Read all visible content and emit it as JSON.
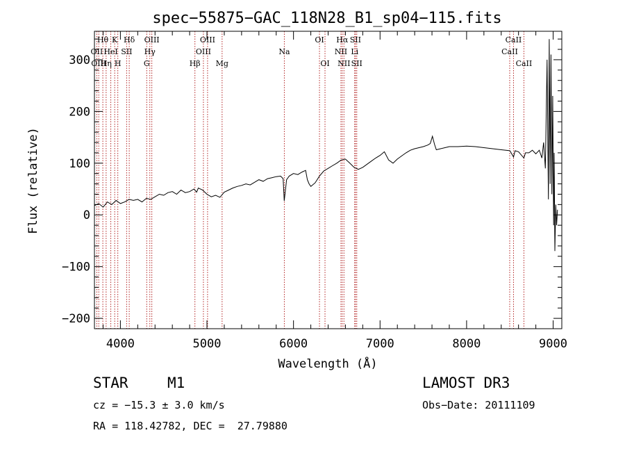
{
  "chart_data": {
    "type": "line",
    "title": "spec−55875−GAC_118N28_B1_sp04−115.fits",
    "xlabel": "Wavelength (Å)",
    "ylabel": "Flux (relative)",
    "xlim": [
      3700,
      9100
    ],
    "ylim": [
      -220,
      355
    ],
    "xticks": [
      4000,
      5000,
      6000,
      7000,
      8000,
      9000
    ],
    "yticks": [
      -200,
      -100,
      0,
      100,
      200,
      300
    ],
    "ytick_labels": [
      "−200",
      "−100",
      "0",
      "100",
      "200",
      "300"
    ],
    "series": [
      {
        "name": "flux",
        "points": [
          [
            3700,
            18
          ],
          [
            3750,
            22
          ],
          [
            3800,
            15
          ],
          [
            3850,
            25
          ],
          [
            3900,
            20
          ],
          [
            3950,
            28
          ],
          [
            4000,
            22
          ],
          [
            4050,
            25
          ],
          [
            4100,
            30
          ],
          [
            4150,
            28
          ],
          [
            4200,
            30
          ],
          [
            4250,
            25
          ],
          [
            4300,
            32
          ],
          [
            4350,
            30
          ],
          [
            4400,
            35
          ],
          [
            4450,
            40
          ],
          [
            4500,
            38
          ],
          [
            4550,
            43
          ],
          [
            4600,
            45
          ],
          [
            4650,
            40
          ],
          [
            4700,
            48
          ],
          [
            4750,
            43
          ],
          [
            4800,
            45
          ],
          [
            4850,
            50
          ],
          [
            4880,
            44
          ],
          [
            4900,
            52
          ],
          [
            4950,
            48
          ],
          [
            5000,
            40
          ],
          [
            5050,
            35
          ],
          [
            5100,
            38
          ],
          [
            5150,
            34
          ],
          [
            5200,
            44
          ],
          [
            5250,
            48
          ],
          [
            5300,
            52
          ],
          [
            5350,
            55
          ],
          [
            5400,
            57
          ],
          [
            5450,
            60
          ],
          [
            5500,
            58
          ],
          [
            5550,
            63
          ],
          [
            5600,
            68
          ],
          [
            5650,
            65
          ],
          [
            5700,
            70
          ],
          [
            5750,
            72
          ],
          [
            5800,
            74
          ],
          [
            5850,
            75
          ],
          [
            5880,
            70
          ],
          [
            5893,
            27
          ],
          [
            5905,
            45
          ],
          [
            5920,
            68
          ],
          [
            5950,
            75
          ],
          [
            6000,
            80
          ],
          [
            6050,
            78
          ],
          [
            6100,
            83
          ],
          [
            6140,
            86
          ],
          [
            6160,
            68
          ],
          [
            6180,
            60
          ],
          [
            6200,
            55
          ],
          [
            6250,
            62
          ],
          [
            6300,
            75
          ],
          [
            6350,
            85
          ],
          [
            6400,
            90
          ],
          [
            6450,
            95
          ],
          [
            6500,
            100
          ],
          [
            6550,
            106
          ],
          [
            6600,
            108
          ],
          [
            6650,
            100
          ],
          [
            6700,
            92
          ],
          [
            6750,
            88
          ],
          [
            6800,
            92
          ],
          [
            6850,
            98
          ],
          [
            6900,
            104
          ],
          [
            6950,
            110
          ],
          [
            7000,
            115
          ],
          [
            7050,
            122
          ],
          [
            7100,
            106
          ],
          [
            7150,
            100
          ],
          [
            7200,
            108
          ],
          [
            7250,
            114
          ],
          [
            7300,
            120
          ],
          [
            7350,
            125
          ],
          [
            7400,
            128
          ],
          [
            7450,
            130
          ],
          [
            7500,
            132
          ],
          [
            7550,
            135
          ],
          [
            7580,
            138
          ],
          [
            7605,
            152
          ],
          [
            7630,
            136
          ],
          [
            7650,
            126
          ],
          [
            7700,
            128
          ],
          [
            7750,
            130
          ],
          [
            7800,
            132
          ],
          [
            7900,
            132
          ],
          [
            8000,
            133
          ],
          [
            8100,
            132
          ],
          [
            8200,
            130
          ],
          [
            8300,
            128
          ],
          [
            8400,
            126
          ],
          [
            8500,
            124
          ],
          [
            8542,
            112
          ],
          [
            8560,
            124
          ],
          [
            8600,
            122
          ],
          [
            8662,
            110
          ],
          [
            8680,
            120
          ],
          [
            8720,
            120
          ],
          [
            8760,
            125
          ],
          [
            8800,
            118
          ],
          [
            8840,
            125
          ],
          [
            8870,
            110
          ],
          [
            8890,
            140
          ],
          [
            8910,
            90
          ],
          [
            8930,
            300
          ],
          [
            8945,
            30
          ],
          [
            8955,
            340
          ],
          [
            8965,
            60
          ],
          [
            8975,
            310
          ],
          [
            8985,
            40
          ],
          [
            8995,
            230
          ],
          [
            9005,
            -20
          ],
          [
            9012,
            120
          ],
          [
            9020,
            -70
          ],
          [
            9030,
            20
          ],
          [
            9040,
            -20
          ],
          [
            9050,
            10
          ]
        ]
      }
    ],
    "lines": [
      {
        "wave": 3797,
        "label": "Hθ",
        "row": 1
      },
      {
        "wave": 3727,
        "label": "OII",
        "row": 2
      },
      {
        "wave": 3750,
        "label": "OIII",
        "row": 3
      },
      {
        "wave": 3835,
        "label": "Hη",
        "row": 3
      },
      {
        "wave": 3889,
        "label": "HeI",
        "row": 2
      },
      {
        "wave": 3934,
        "label": "K",
        "row": 1
      },
      {
        "wave": 3970,
        "label": "H",
        "row": 3
      },
      {
        "wave": 4072,
        "label": "SII",
        "row": 2
      },
      {
        "wave": 4102,
        "label": "Hδ",
        "row": 1
      },
      {
        "wave": 4304,
        "label": "G",
        "row": 3
      },
      {
        "wave": 4340,
        "label": "Hγ",
        "row": 2
      },
      {
        "wave": 4363,
        "label": "OIII",
        "row": 1
      },
      {
        "wave": 4861,
        "label": "Hβ",
        "row": 3
      },
      {
        "wave": 4959,
        "label": "OIII",
        "row": 2
      },
      {
        "wave": 5007,
        "label": "OIII",
        "row": 1
      },
      {
        "wave": 5175,
        "label": "Mg",
        "row": 3
      },
      {
        "wave": 5894,
        "label": "Na",
        "row": 2
      },
      {
        "wave": 6300,
        "label": "OI",
        "row": 1
      },
      {
        "wave": 6364,
        "label": "OI",
        "row": 3
      },
      {
        "wave": 6548,
        "label": "NII",
        "row": 2
      },
      {
        "wave": 6563,
        "label": "Hα",
        "row": 1
      },
      {
        "wave": 6583,
        "label": "NII",
        "row": 3
      },
      {
        "wave": 6707,
        "label": "Li",
        "row": 2
      },
      {
        "wave": 6716,
        "label": "SII",
        "row": 1
      },
      {
        "wave": 6731,
        "label": "SII",
        "row": 3
      },
      {
        "wave": 8498,
        "label": "CaII",
        "row": 2
      },
      {
        "wave": 8542,
        "label": "CaII",
        "row": 1
      },
      {
        "wave": 8662,
        "label": "CaII",
        "row": 3
      }
    ]
  },
  "info": {
    "class": "STAR",
    "subclass": "M1",
    "survey": "LAMOST DR3",
    "cz": "cz = −15.3 ± 3.0 km/s",
    "obs_date": "Obs−Date: 20111109",
    "radec": "RA = 118.42782, DEC =  27.79880"
  },
  "colors": {
    "line_marker": "#b22222",
    "spectrum": "#000000",
    "axes": "#000000"
  }
}
